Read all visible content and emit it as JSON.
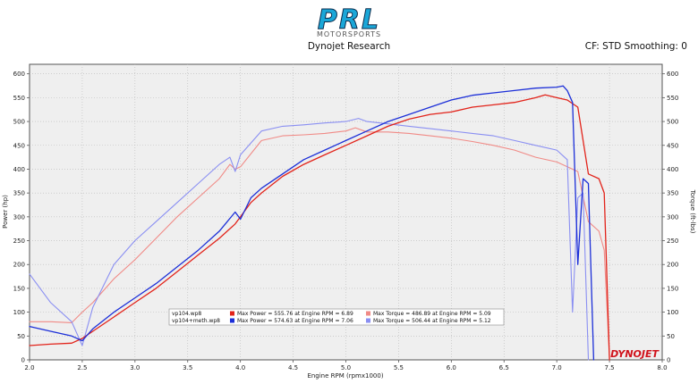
{
  "logo": {
    "wordmark": "PRL",
    "subtext": "MOTORSPORTS"
  },
  "header": {
    "title": "Dynojet Research",
    "settings": "CF: STD Smoothing: 0"
  },
  "brand_mark": "DYNOJET",
  "colors": {
    "run1_power": "#e2231a",
    "run1_torque": "#f08a86",
    "run2_power": "#1c2fd8",
    "run2_torque": "#8a8ff2",
    "plot_bg": "#efefef",
    "grid": "#b8b8b8"
  },
  "legend": [
    {
      "file": "vp104.wp8",
      "power_text": "Max Power = 555.76 at Engine RPM = 6.89",
      "torque_text": "Max Torque = 486.89 at Engine RPM = 5.09"
    },
    {
      "file": "vp104+meth.wp8",
      "power_text": "Max Power = 574.63 at Engine RPM = 7.06",
      "torque_text": "Max Torque = 506.44 at Engine RPM = 5.12"
    }
  ],
  "chart_data": {
    "type": "line",
    "xlabel": "Engine RPM (rpmx1000)",
    "ylabel": "Power (hp)",
    "y2label": "Torque (ft-lbs)",
    "xlim": [
      2.0,
      8.0
    ],
    "ylim": [
      0,
      620
    ],
    "y2lim": [
      0,
      620
    ],
    "xticks": [
      2.0,
      2.5,
      3.0,
      3.5,
      4.0,
      4.5,
      5.0,
      5.5,
      6.0,
      6.5,
      7.0,
      7.5,
      8.0
    ],
    "xtick_labels": [
      "2.0",
      "2.5",
      "3.0",
      "3.5",
      "4.0",
      "4.5",
      "5.0",
      "5.5",
      "6.0",
      "6.5",
      "7.0",
      "7.5",
      "8.0"
    ],
    "yticks": [
      0,
      50,
      100,
      150,
      200,
      250,
      300,
      350,
      400,
      450,
      500,
      550,
      600
    ],
    "ytick_labels": [
      "0",
      "50",
      "100",
      "150",
      "200",
      "250",
      "300",
      "350",
      "400",
      "450",
      "500",
      "550",
      "600"
    ],
    "grid": true,
    "series": [
      {
        "key": "run1_power",
        "name": "vp104.wp8",
        "measure": "Power",
        "x": [
          2.0,
          2.2,
          2.4,
          2.5,
          2.6,
          2.8,
          3.0,
          3.2,
          3.4,
          3.6,
          3.8,
          3.95,
          4.0,
          4.1,
          4.2,
          4.4,
          4.6,
          4.8,
          5.0,
          5.2,
          5.4,
          5.6,
          5.8,
          6.0,
          6.2,
          6.4,
          6.6,
          6.8,
          6.89,
          7.0,
          7.1,
          7.2,
          7.3,
          7.4,
          7.45,
          7.5
        ],
        "y": [
          30,
          33,
          35,
          45,
          60,
          90,
          120,
          150,
          185,
          220,
          255,
          285,
          300,
          330,
          350,
          385,
          410,
          430,
          450,
          470,
          490,
          505,
          515,
          520,
          530,
          535,
          540,
          550,
          555.76,
          550,
          545,
          530,
          390,
          380,
          350,
          0
        ]
      },
      {
        "key": "run1_torque",
        "name": "vp104.wp8",
        "measure": "Torque",
        "x": [
          2.0,
          2.2,
          2.4,
          2.5,
          2.6,
          2.8,
          3.0,
          3.2,
          3.4,
          3.6,
          3.8,
          3.9,
          3.95,
          4.0,
          4.2,
          4.4,
          4.6,
          4.8,
          5.0,
          5.09,
          5.2,
          5.4,
          5.6,
          5.8,
          6.0,
          6.2,
          6.4,
          6.6,
          6.8,
          7.0,
          7.2,
          7.3,
          7.4,
          7.45,
          7.5
        ],
        "y": [
          80,
          80,
          78,
          100,
          120,
          170,
          210,
          255,
          300,
          340,
          380,
          410,
          400,
          405,
          460,
          470,
          472,
          475,
          480,
          486.89,
          478,
          478,
          475,
          470,
          465,
          458,
          450,
          440,
          425,
          415,
          395,
          290,
          270,
          230,
          0
        ]
      },
      {
        "key": "run2_power",
        "name": "vp104+meth.wp8",
        "measure": "Power",
        "x": [
          2.0,
          2.2,
          2.4,
          2.5,
          2.6,
          2.8,
          3.0,
          3.2,
          3.4,
          3.6,
          3.8,
          3.95,
          4.0,
          4.1,
          4.2,
          4.4,
          4.6,
          4.8,
          5.0,
          5.2,
          5.4,
          5.6,
          5.8,
          6.0,
          6.2,
          6.4,
          6.6,
          6.8,
          7.0,
          7.06,
          7.1,
          7.15,
          7.2,
          7.25,
          7.3,
          7.35
        ],
        "y": [
          70,
          60,
          50,
          40,
          65,
          100,
          130,
          160,
          195,
          230,
          270,
          310,
          295,
          340,
          360,
          390,
          420,
          440,
          460,
          480,
          500,
          515,
          530,
          545,
          555,
          560,
          565,
          570,
          572,
          574.63,
          565,
          540,
          200,
          380,
          370,
          0
        ]
      },
      {
        "key": "run2_torque",
        "name": "vp104+meth.wp8",
        "measure": "Torque",
        "x": [
          2.0,
          2.2,
          2.4,
          2.5,
          2.6,
          2.8,
          3.0,
          3.2,
          3.4,
          3.6,
          3.8,
          3.9,
          3.95,
          4.0,
          4.2,
          4.4,
          4.6,
          4.8,
          5.0,
          5.12,
          5.2,
          5.4,
          5.6,
          5.8,
          6.0,
          6.2,
          6.4,
          6.6,
          6.8,
          7.0,
          7.1,
          7.15,
          7.2,
          7.25,
          7.3
        ],
        "y": [
          180,
          120,
          80,
          30,
          110,
          200,
          250,
          290,
          330,
          370,
          410,
          425,
          395,
          430,
          480,
          490,
          493,
          497,
          500,
          506.44,
          500,
          495,
          490,
          485,
          480,
          475,
          470,
          460,
          450,
          440,
          420,
          100,
          340,
          350,
          0
        ]
      }
    ]
  }
}
